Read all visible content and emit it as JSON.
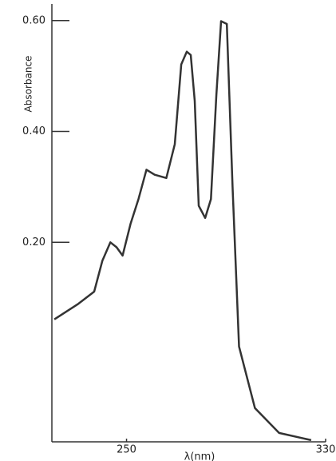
{
  "chart_data": {
    "type": "line",
    "y_label": "Absorbance",
    "x_label": "λ(nm)",
    "x": [
      221,
      230.6,
      237,
      240.3,
      243.5,
      246,
      248.4,
      251.6,
      254.8,
      258,
      261.3,
      266,
      269.4,
      272,
      274.2,
      275.8,
      277.4,
      279,
      281.6,
      283.9,
      286.1,
      288,
      290.3,
      292.6,
      295.2,
      301.6,
      311.3,
      324.2
    ],
    "series": [
      {
        "color": "#333333",
        "values": [
          0.061,
          0.089,
          0.111,
          0.167,
          0.2,
          0.191,
          0.176,
          0.233,
          0.278,
          0.331,
          0.322,
          0.316,
          0.377,
          0.521,
          0.544,
          0.538,
          0.455,
          0.266,
          0.244,
          0.278,
          0.466,
          0.599,
          0.594,
          0.3,
          0.012,
          -0.099,
          -0.144,
          -0.157
        ]
      }
    ],
    "xlim": [
      220,
      330
    ],
    "xticks": [
      250,
      330
    ],
    "ylim": [
      -0.16,
      0.63
    ],
    "yticks": [
      {
        "value": 0.2,
        "label": "0.20"
      },
      {
        "value": 0.4,
        "label": "0.40"
      },
      {
        "value": 0.6,
        "label": "0.60"
      }
    ],
    "grid": false
  }
}
